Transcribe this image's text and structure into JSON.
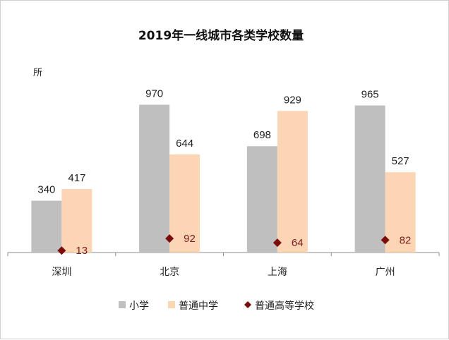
{
  "chart_data": {
    "type": "bar",
    "title": "2019年一线城市各类学校数量",
    "unit": "所",
    "categories": [
      "深圳",
      "北京",
      "上海",
      "广州"
    ],
    "series": [
      {
        "name": "小学",
        "kind": "bar",
        "color": "#bfbfbf",
        "values": [
          340,
          970,
          698,
          965
        ]
      },
      {
        "name": "普通中学",
        "kind": "bar",
        "color": "#fcd5b5",
        "values": [
          417,
          644,
          929,
          527
        ]
      },
      {
        "name": "普通高等学校",
        "kind": "marker",
        "color": "#7b0c0c",
        "label_color": "#7a1e1e",
        "values": [
          13,
          92,
          64,
          82
        ]
      }
    ],
    "legend_position": "bottom",
    "grid": false
  }
}
